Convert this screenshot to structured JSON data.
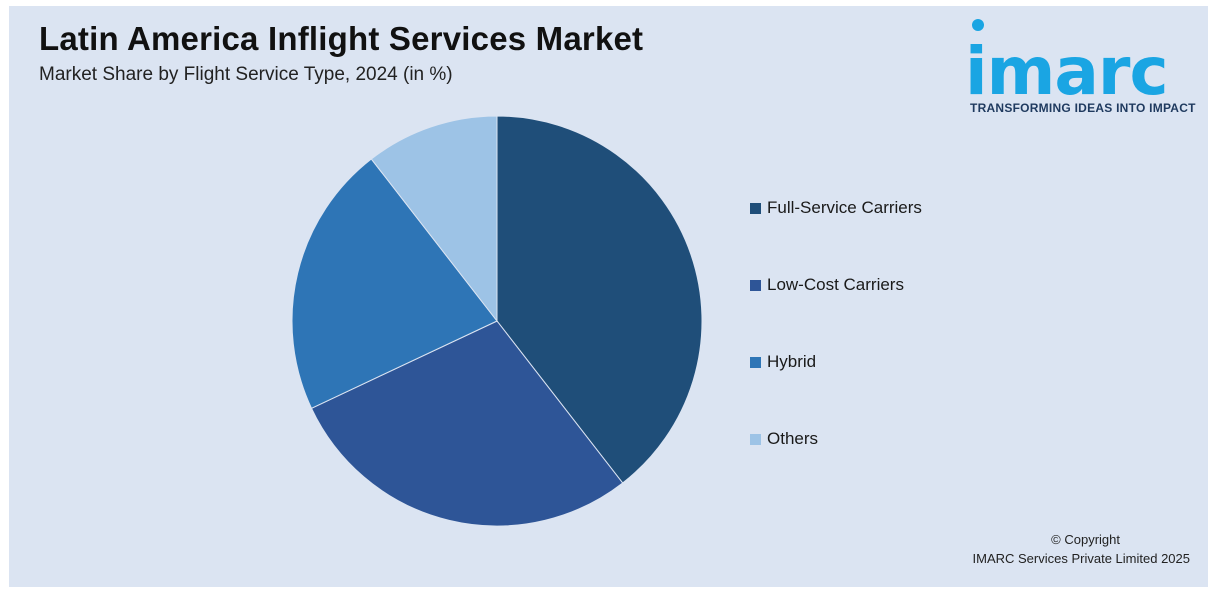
{
  "header": {
    "title": "Latin America Inflight Services Market",
    "subtitle": "Market Share by Flight Service Type, 2024 (in %)"
  },
  "logo": {
    "wordmark": "imarc",
    "tagline": "TRANSFORMING IDEAS INTO IMPACT",
    "color": "#1aa5e3"
  },
  "chart_data": {
    "type": "pie",
    "title": "Latin America Inflight Services Market",
    "subtitle": "Market Share by Flight Service Type, 2024 (in %)",
    "start_angle_deg": 0,
    "direction": "clockwise",
    "legend_position": "right",
    "slices": [
      {
        "name": "Full-Service Carriers",
        "value": 39.5,
        "color": "#1f4e79"
      },
      {
        "name": "Low-Cost Carriers",
        "value": 28.5,
        "color": "#2e5597"
      },
      {
        "name": "Hybrid",
        "value": 21.5,
        "color": "#2e75b6"
      },
      {
        "name": "Others",
        "value": 10.5,
        "color": "#9dc3e6"
      }
    ]
  },
  "footer": {
    "copyright_line1": "© Copyright",
    "copyright_line2": "IMARC Services Private Limited 2025"
  }
}
